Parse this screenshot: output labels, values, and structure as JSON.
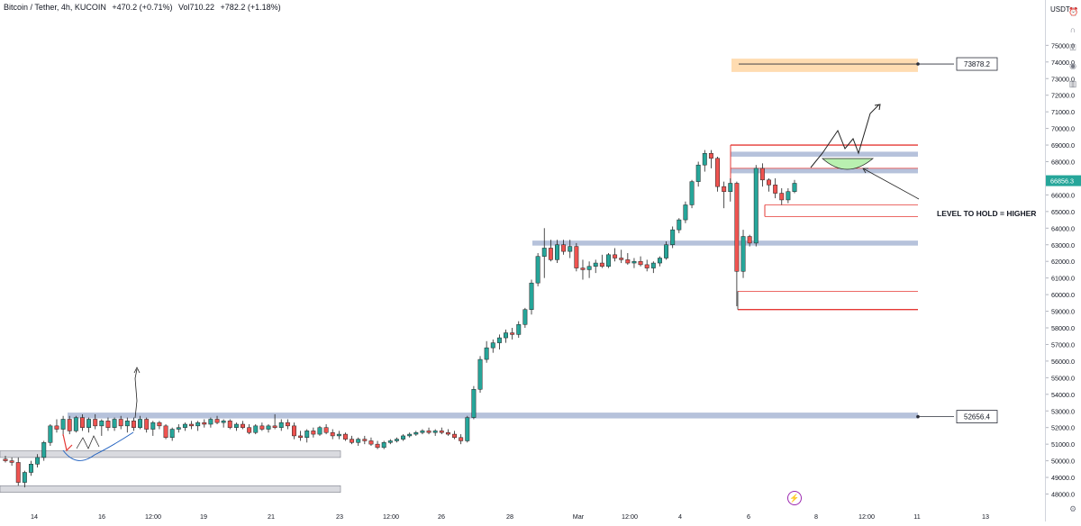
{
  "header": {
    "symbol": "Bitcoin / Tether, 4h, KUCOIN",
    "change": "+470.2 (+0.71%)",
    "volume_label": "Vol",
    "volume": "710.22",
    "volume_change": "+782.2 (+1.18%)"
  },
  "axis": {
    "currency": "USDT"
  },
  "annotations": {
    "level_to_hold": "LEVEL TO HOLD = HIGHER",
    "upper_label": "73878.2",
    "lower_label": "52656.4",
    "last_price": "66856.3"
  },
  "colors": {
    "up": "#26a69a",
    "down": "#ef5350",
    "zone_blue": "#b2bfd9",
    "zone_orange": "#ffd8a8",
    "red_line": "#e53935",
    "green_zone": "#b9f0b0"
  },
  "toolbar": {
    "icons": [
      "alert-icon",
      "magnet-icon",
      "lock-icon",
      "eye-icon",
      "trash-icon",
      "settings-icon"
    ]
  },
  "chart_data": {
    "type": "candlestick",
    "y_axis": {
      "range": [
        47700,
        75900
      ],
      "ticks": [
        48000,
        49000,
        50000,
        51000,
        52000,
        53000,
        54000,
        55000,
        56000,
        57000,
        58000,
        59000,
        60000,
        61000,
        62000,
        63000,
        64000,
        65000,
        66000,
        67000,
        68000,
        69000,
        70000,
        71000,
        72000,
        73000,
        74000,
        75000
      ],
      "tick_labels": [
        "48000.0",
        "49000.0",
        "50000.0",
        "51000.0",
        "52000.0",
        "53000.0",
        "54000.0",
        "55000.0",
        "56000.0",
        "57000.0",
        "58000.0",
        "59000.0",
        "60000.0",
        "61000.0",
        "62000.0",
        "63000.0",
        "64000.0",
        "65000.0",
        "66000.0",
        "67000.0",
        "68000.0",
        "69000.0",
        "70000.0",
        "71000.0",
        "72000.0",
        "73000.0",
        "74000.0",
        "75000.0"
      ]
    },
    "x_axis": {
      "tick_labels": [
        "14",
        "16",
        "12:00",
        "19",
        "21",
        "23",
        "12:00",
        "26",
        "28",
        "Mar",
        "12:00",
        "4",
        "6",
        "8",
        "12:00",
        "11",
        "13"
      ]
    },
    "ohlc": [
      [
        50100,
        50300,
        49900,
        50000
      ],
      [
        50000,
        50200,
        49700,
        49900
      ],
      [
        49900,
        50200,
        48500,
        48700
      ],
      [
        48700,
        49400,
        48400,
        49300
      ],
      [
        49300,
        50000,
        49100,
        49800
      ],
      [
        49800,
        50400,
        49600,
        50200
      ],
      [
        50200,
        51200,
        50000,
        51100
      ],
      [
        51100,
        52200,
        50900,
        52100
      ],
      [
        52100,
        52500,
        51700,
        51900
      ],
      [
        51900,
        52700,
        51500,
        52500
      ],
      [
        52500,
        52700,
        51600,
        51800
      ],
      [
        51800,
        52700,
        51700,
        52600
      ],
      [
        52600,
        52800,
        51800,
        52000
      ],
      [
        52000,
        52600,
        51700,
        52500
      ],
      [
        52500,
        52800,
        51900,
        52100
      ],
      [
        52100,
        52500,
        51500,
        52400
      ],
      [
        52400,
        52600,
        51800,
        52000
      ],
      [
        52000,
        52600,
        51800,
        52500
      ],
      [
        52500,
        52700,
        51900,
        52100
      ],
      [
        52100,
        52600,
        51700,
        52400
      ],
      [
        52400,
        52600,
        51800,
        52000
      ],
      [
        52000,
        52700,
        51900,
        52500
      ],
      [
        52500,
        52600,
        51700,
        51900
      ],
      [
        51900,
        52400,
        51500,
        52300
      ],
      [
        52300,
        52400,
        51900,
        52100
      ],
      [
        52100,
        52200,
        51300,
        51400
      ],
      [
        51400,
        52000,
        51200,
        51900
      ],
      [
        51900,
        52200,
        51700,
        52000
      ],
      [
        52000,
        52300,
        51800,
        52200
      ],
      [
        52200,
        52400,
        51900,
        52100
      ],
      [
        52100,
        52400,
        51800,
        52300
      ],
      [
        52300,
        52500,
        52000,
        52200
      ],
      [
        52200,
        52600,
        52000,
        52500
      ],
      [
        52500,
        52700,
        52200,
        52300
      ],
      [
        52300,
        52500,
        52000,
        52400
      ],
      [
        52400,
        52500,
        51900,
        52000
      ],
      [
        52000,
        52300,
        51800,
        52200
      ],
      [
        52200,
        52400,
        51900,
        52000
      ],
      [
        52000,
        52200,
        51600,
        51700
      ],
      [
        51700,
        52200,
        51600,
        52100
      ],
      [
        52100,
        52300,
        51800,
        51900
      ],
      [
        51900,
        52200,
        51700,
        52100
      ],
      [
        52100,
        52800,
        51900,
        52000
      ],
      [
        52000,
        52500,
        51800,
        52300
      ],
      [
        52300,
        52500,
        51900,
        52100
      ],
      [
        52100,
        52300,
        51300,
        51500
      ],
      [
        51500,
        51800,
        51200,
        51400
      ],
      [
        51400,
        51900,
        51100,
        51800
      ],
      [
        51800,
        52000,
        51400,
        51600
      ],
      [
        51600,
        52100,
        51500,
        52000
      ],
      [
        52000,
        52200,
        51600,
        51700
      ],
      [
        51700,
        51900,
        51300,
        51500
      ],
      [
        51500,
        51800,
        51300,
        51600
      ],
      [
        51600,
        51700,
        51200,
        51300
      ],
      [
        51300,
        51500,
        51000,
        51100
      ],
      [
        51100,
        51400,
        50900,
        51300
      ],
      [
        51300,
        51500,
        51000,
        51200
      ],
      [
        51200,
        51400,
        50900,
        51000
      ],
      [
        51000,
        51200,
        50700,
        50800
      ],
      [
        50800,
        51200,
        50700,
        51100
      ],
      [
        51100,
        51300,
        51000,
        51200
      ],
      [
        51200,
        51400,
        51100,
        51300
      ],
      [
        51300,
        51600,
        51200,
        51500
      ],
      [
        51500,
        51700,
        51400,
        51600
      ],
      [
        51600,
        51800,
        51500,
        51700
      ],
      [
        51700,
        51900,
        51600,
        51800
      ],
      [
        51800,
        52000,
        51600,
        51700
      ],
      [
        51700,
        51900,
        51500,
        51800
      ],
      [
        51800,
        52000,
        51600,
        51700
      ],
      [
        51700,
        51900,
        51500,
        51600
      ],
      [
        51600,
        51800,
        51300,
        51400
      ],
      [
        51400,
        51600,
        51000,
        51200
      ],
      [
        51200,
        52700,
        51100,
        52600
      ],
      [
        52600,
        54500,
        52500,
        54300
      ],
      [
        54300,
        56300,
        54100,
        56100
      ],
      [
        56100,
        57200,
        55900,
        56800
      ],
      [
        56800,
        57300,
        56500,
        57100
      ],
      [
        57100,
        57600,
        56700,
        57400
      ],
      [
        57400,
        57900,
        57100,
        57700
      ],
      [
        57700,
        58000,
        57300,
        57600
      ],
      [
        57600,
        58400,
        57400,
        58200
      ],
      [
        58200,
        59200,
        58000,
        59100
      ],
      [
        59100,
        60900,
        58800,
        60700
      ],
      [
        60700,
        62500,
        60500,
        62300
      ],
      [
        62300,
        64000,
        61000,
        62800
      ],
      [
        62800,
        63300,
        62000,
        62100
      ],
      [
        62100,
        63300,
        61900,
        63000
      ],
      [
        63000,
        63300,
        62400,
        62600
      ],
      [
        62600,
        63300,
        62200,
        62900
      ],
      [
        62900,
        63100,
        61400,
        61600
      ],
      [
        61600,
        62100,
        60900,
        61500
      ],
      [
        61500,
        62000,
        61000,
        61700
      ],
      [
        61700,
        62100,
        61300,
        61900
      ],
      [
        61900,
        62400,
        61600,
        61700
      ],
      [
        61700,
        62500,
        61600,
        62400
      ],
      [
        62400,
        62800,
        62000,
        62200
      ],
      [
        62200,
        62700,
        61900,
        62100
      ],
      [
        62100,
        62500,
        61800,
        61900
      ],
      [
        61900,
        62200,
        61600,
        62000
      ],
      [
        62000,
        62300,
        61700,
        61800
      ],
      [
        61800,
        62100,
        61400,
        61600
      ],
      [
        61600,
        62000,
        61300,
        61900
      ],
      [
        61900,
        62300,
        61700,
        62200
      ],
      [
        62200,
        63200,
        62100,
        63000
      ],
      [
        63000,
        64100,
        62800,
        63900
      ],
      [
        63900,
        64600,
        63700,
        64500
      ],
      [
        64500,
        65600,
        64300,
        65400
      ],
      [
        65400,
        66900,
        65200,
        66800
      ],
      [
        66800,
        68000,
        66500,
        67800
      ],
      [
        67800,
        68700,
        67400,
        68500
      ],
      [
        68500,
        68700,
        67600,
        68200
      ],
      [
        68200,
        68300,
        66200,
        66500
      ],
      [
        66500,
        66800,
        65200,
        66200
      ],
      [
        66200,
        67000,
        65600,
        66700
      ],
      [
        66700,
        66800,
        59300,
        61400
      ],
      [
        61400,
        63900,
        61000,
        63500
      ],
      [
        63500,
        63600,
        62900,
        63100
      ],
      [
        63100,
        67800,
        62900,
        67600
      ],
      [
        67600,
        67900,
        66500,
        66900
      ],
      [
        66900,
        67000,
        66200,
        66600
      ],
      [
        66600,
        67000,
        65800,
        66100
      ],
      [
        66100,
        66400,
        65400,
        65700
      ],
      [
        65700,
        66400,
        65500,
        66200
      ],
      [
        66200,
        66900,
        66100,
        66700
      ]
    ],
    "price_zones": [
      {
        "low": 73400,
        "high": 74200,
        "label": "73878.2"
      },
      {
        "low": 68300,
        "high": 68600
      },
      {
        "low": 67300,
        "high": 67600
      },
      {
        "low": 62950,
        "high": 63250
      },
      {
        "low": 52550,
        "high": 52900,
        "label": "52656.4"
      },
      {
        "low": 50200,
        "high": 50600
      },
      {
        "low": 48100,
        "high": 48500
      }
    ],
    "horizontal_levels": [
      69000,
      67600,
      65400,
      64700,
      60200,
      59100
    ],
    "last_price": 66856.3
  }
}
